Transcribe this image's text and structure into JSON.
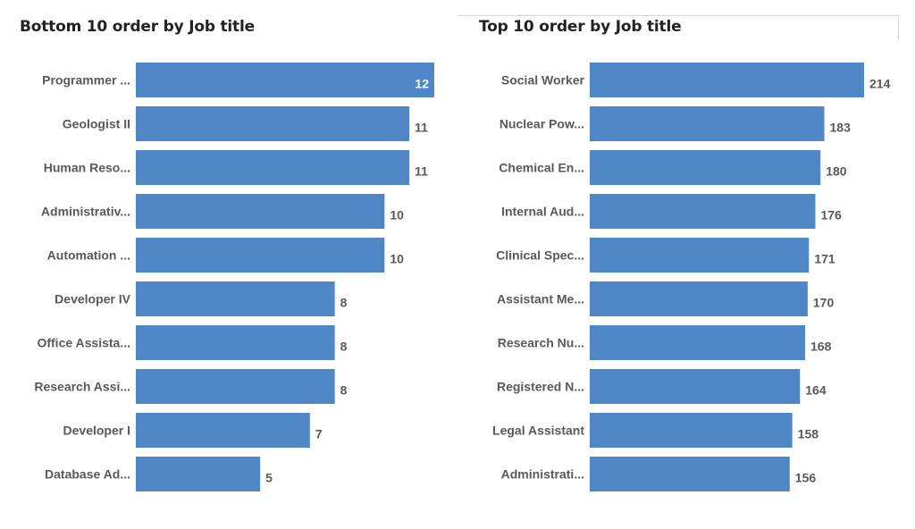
{
  "chart_data": [
    {
      "type": "bar",
      "orientation": "horizontal",
      "title": "Bottom 10 order by Job title",
      "categories": [
        "Programmer ...",
        "Geologist II",
        "Human Reso...",
        "Administrativ...",
        "Automation ...",
        "Developer IV",
        "Office Assista...",
        "Research Assi...",
        "Developer I",
        "Database Ad..."
      ],
      "values": [
        12,
        11,
        11,
        10,
        10,
        8,
        8,
        8,
        7,
        5
      ],
      "xlim": [
        0,
        12
      ],
      "bar_color": "#4f86c6",
      "grid": false,
      "legend": "none"
    },
    {
      "type": "bar",
      "orientation": "horizontal",
      "title": "Top 10 order by Job title",
      "categories": [
        "Social Worker",
        "Nuclear Pow...",
        "Chemical En...",
        "Internal Aud...",
        "Clinical Spec...",
        "Assistant Me...",
        "Research Nu...",
        "Registered N...",
        "Legal Assistant",
        "Administrati..."
      ],
      "values": [
        214,
        183,
        180,
        176,
        171,
        170,
        168,
        164,
        158,
        156
      ],
      "xlim": [
        0,
        214
      ],
      "bar_color": "#4f86c6",
      "grid": false,
      "legend": "none"
    }
  ]
}
